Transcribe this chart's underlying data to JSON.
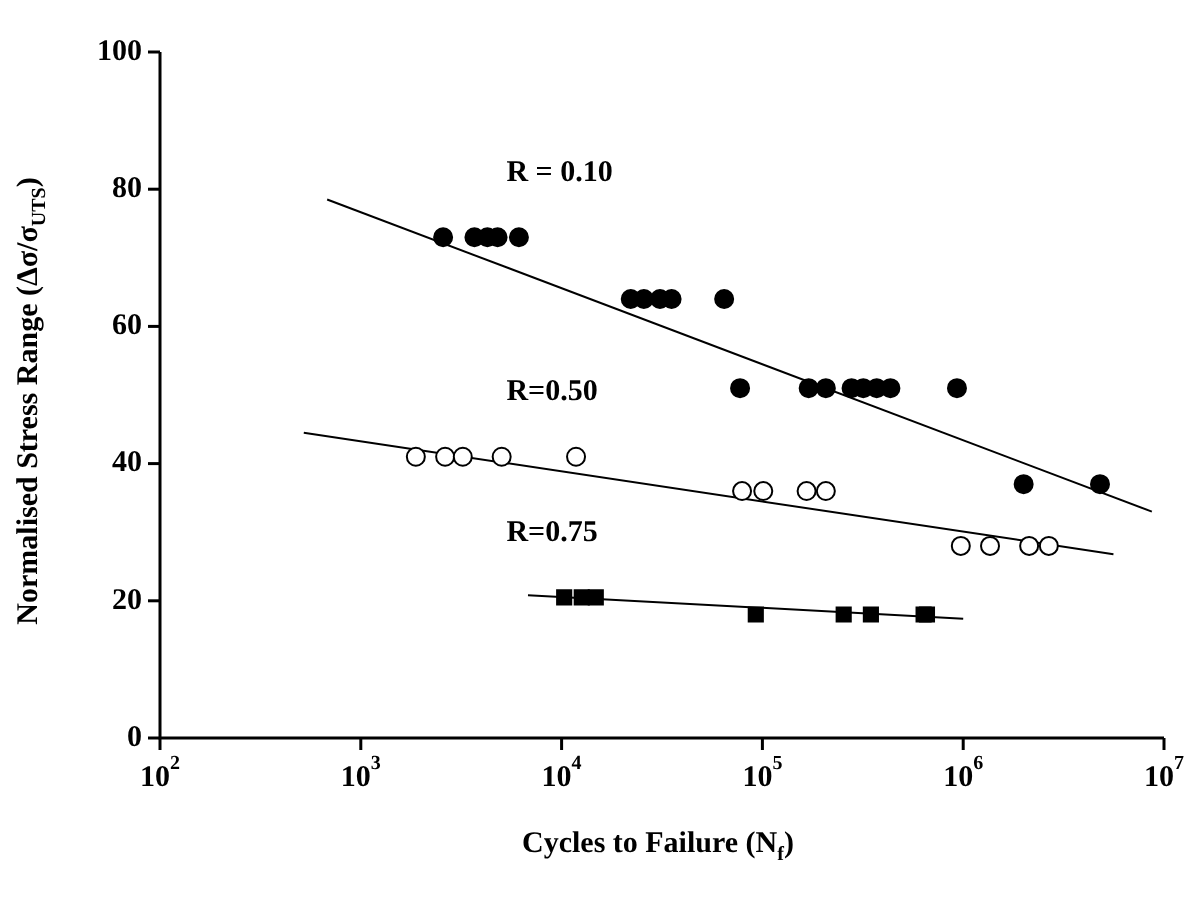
{
  "chart_data": {
    "type": "scatter",
    "xlabel": "Cycles to Failure (N$_{f}$)",
    "ylabel": "Normalised Stress Range (Δσ/σ$_{UTS}$)",
    "log": "x",
    "xlim": [
      100,
      10000000
    ],
    "xticks": [
      {
        "value": 100,
        "label": "10$^{2}$"
      },
      {
        "value": 1000,
        "label": "10$^{3}$"
      },
      {
        "value": 10000,
        "label": "10$^{4}$"
      },
      {
        "value": 100000,
        "label": "10$^{5}$"
      },
      {
        "value": 1000000,
        "label": "10$^{6}$"
      },
      {
        "value": 10000000,
        "label": "10$^{7}$"
      }
    ],
    "ylim": [
      0,
      100
    ],
    "yticks": [
      0,
      20,
      40,
      60,
      80,
      100
    ],
    "series": [
      {
        "name": "R = 0.10",
        "type": "scatter",
        "marker": "circle",
        "color": "#000000",
        "x": [
          2570,
          3680,
          4270,
          4800,
          6130,
          22100,
          25700,
          30900,
          35300,
          64500,
          77400,
          170000,
          207000,
          278000,
          318000,
          371000,
          434000,
          931000,
          2000000,
          4800000
        ],
        "values": [
          73,
          73,
          73,
          73,
          73,
          64,
          64,
          64,
          64,
          64,
          51,
          51,
          51,
          51,
          51,
          51,
          51,
          51,
          37,
          37
        ]
      },
      {
        "type": "line",
        "marker": "none",
        "color": "#000000",
        "x": [
          680,
          8700000
        ],
        "values": [
          78.5,
          33
        ]
      },
      {
        "name": "R=0.50",
        "type": "scatter",
        "marker": "circle",
        "color": "#ffffff",
        "x": [
          1880,
          2630,
          3220,
          5030,
          11800,
          79200,
          101000,
          166000,
          207000,
          973000,
          1360000,
          2130000,
          2670000
        ],
        "values": [
          41,
          41,
          41,
          41,
          41,
          36,
          36,
          36,
          36,
          28,
          28,
          28,
          28
        ]
      },
      {
        "type": "line",
        "marker": "none",
        "color": "#000000",
        "x": [
          520,
          5600000
        ],
        "values": [
          44.5,
          26.8
        ]
      },
      {
        "name": "R=0.75",
        "type": "scatter",
        "marker": "square",
        "color": "#000000",
        "x": [
          10300,
          12600,
          14800,
          92700,
          254000,
          347000,
          635000,
          660000
        ],
        "values": [
          20.5,
          20.5,
          20.5,
          18,
          18,
          18,
          18,
          18
        ]
      },
      {
        "type": "line",
        "marker": "none",
        "color": "#000000",
        "x": [
          6800,
          1000000
        ],
        "values": [
          20.8,
          17.4
        ]
      }
    ]
  }
}
